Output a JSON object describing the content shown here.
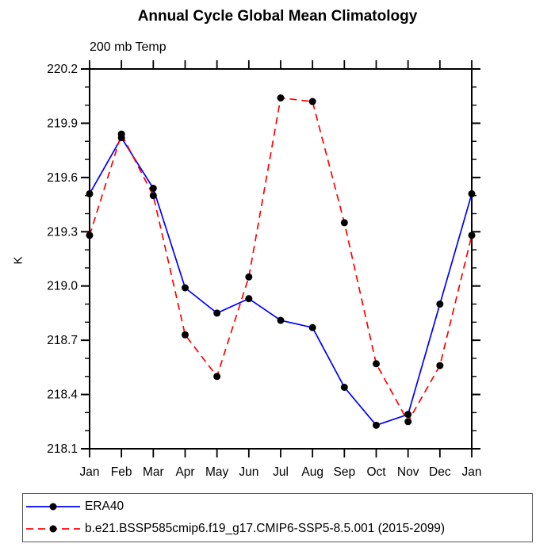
{
  "chart_data": {
    "type": "line",
    "title": "Annual Cycle Global Mean Climatology",
    "subtitle": "200 mb Temp",
    "ylabel": "K",
    "xlabel": "",
    "categories": [
      "Jan",
      "Feb",
      "Mar",
      "Apr",
      "May",
      "Jun",
      "Jul",
      "Aug",
      "Sep",
      "Oct",
      "Nov",
      "Dec",
      "Jan"
    ],
    "series": [
      {
        "name": "ERA40",
        "color": "#0000ff",
        "line_style": "solid",
        "marker": "black-dot",
        "marker_color": "#000000",
        "values": [
          219.51,
          219.82,
          219.54,
          218.99,
          218.85,
          218.93,
          218.81,
          218.77,
          218.44,
          218.23,
          218.29,
          218.9,
          219.51
        ]
      },
      {
        "name": "b.e21.BSSP585cmip6.f19_g17.CMIP6-SSP5-8.5.001 (2015-2099)",
        "color": "#ff0000",
        "line_style": "dashed",
        "marker": "black-dot",
        "marker_color": "#000000",
        "values": [
          219.28,
          219.84,
          219.5,
          218.73,
          218.5,
          219.05,
          220.04,
          220.02,
          219.35,
          218.57,
          218.25,
          218.56,
          219.28
        ]
      }
    ],
    "ylim": [
      218.1,
      220.2
    ],
    "yticks": [
      218.1,
      218.4,
      218.7,
      219.0,
      219.3,
      219.6,
      219.9,
      220.2
    ],
    "ytick_major_step": 0.3,
    "ytick_minor_step": 0.1,
    "grid": false,
    "legend_position": "bottom"
  },
  "legend": {
    "entries": [
      {
        "label": "ERA40"
      },
      {
        "label": "b.e21.BSSP585cmip6.f19_g17.CMIP6-SSP5-8.5.001 (2015-2099)"
      }
    ]
  }
}
